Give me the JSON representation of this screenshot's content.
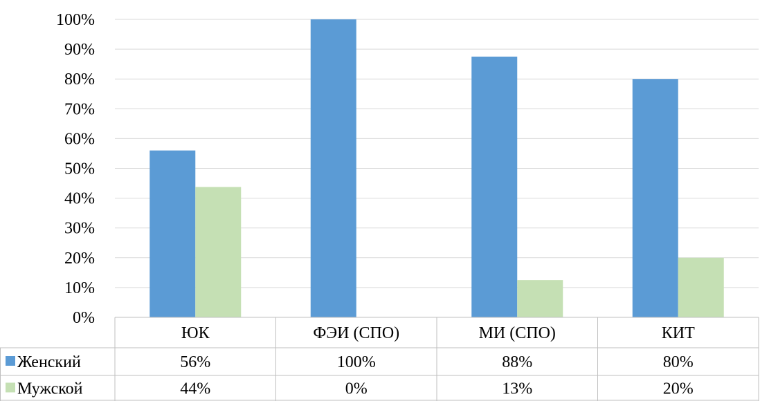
{
  "chart_data": {
    "type": "bar",
    "categories": [
      "ЮК",
      "ФЭИ (СПО)",
      "МИ (СПО)",
      "КИТ"
    ],
    "series": [
      {
        "name": "Женский",
        "values": [
          56,
          100,
          87.5,
          80
        ],
        "labels": [
          "56%",
          "100%",
          "88%",
          "80%"
        ],
        "color": "#5B9BD5"
      },
      {
        "name": "Мужской",
        "values": [
          43.75,
          0,
          12.5,
          20
        ],
        "labels": [
          "44%",
          "0%",
          "13%",
          "20%"
        ],
        "color": "#C5E0B4"
      }
    ],
    "y_ticks": [
      "0%",
      "10%",
      "20%",
      "30%",
      "40%",
      "50%",
      "60%",
      "70%",
      "80%",
      "90%",
      "100%"
    ],
    "ylim": [
      0,
      100
    ],
    "grid": true,
    "legend": "data-table",
    "colors": {
      "grid": "#D9D9D9",
      "table_border": "#BFBFBF"
    }
  }
}
